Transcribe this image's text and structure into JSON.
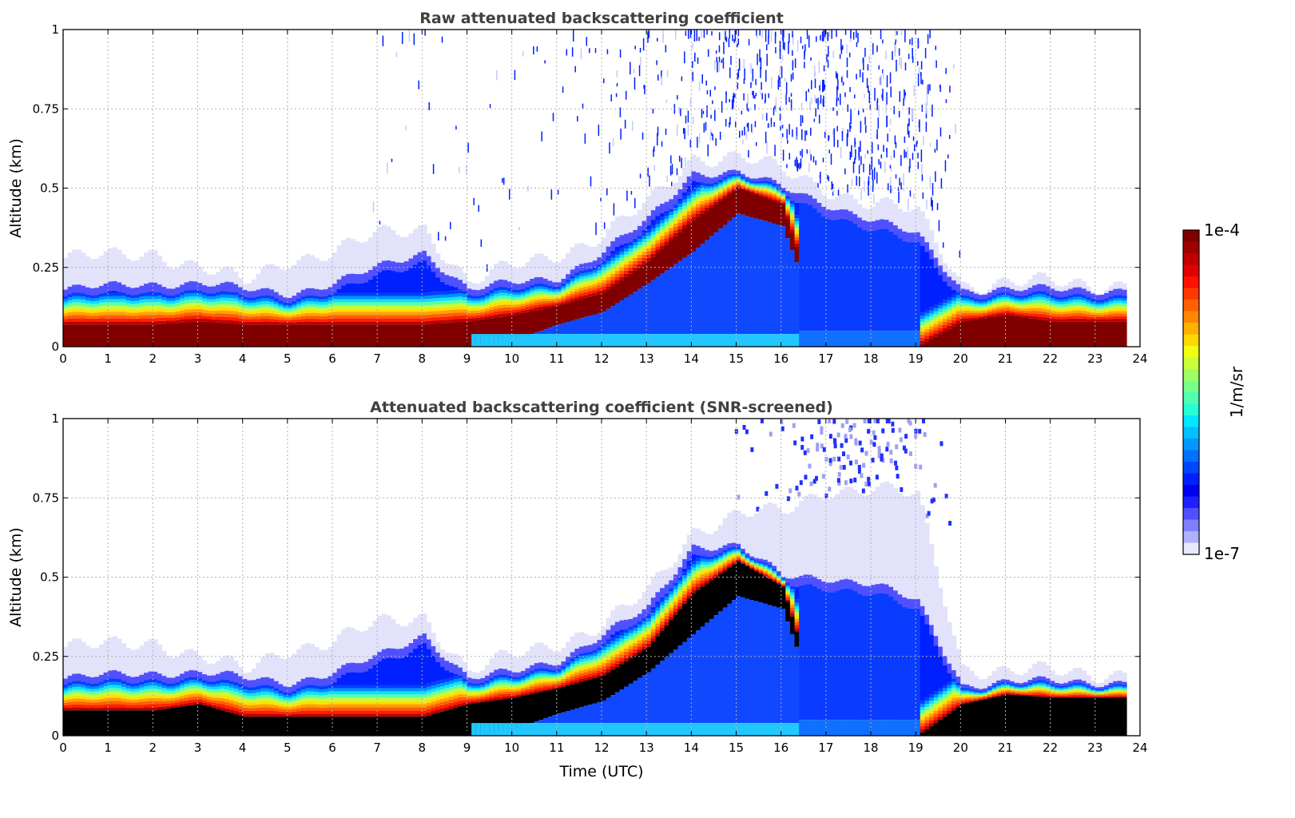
{
  "chart_data": [
    {
      "type": "heatmap",
      "title": "Raw attenuated backscattering coefficient",
      "xlabel": "",
      "ylabel": "Altitude (km)",
      "xlim": [
        0,
        24
      ],
      "ylim": [
        0,
        1
      ],
      "xticks": [
        "0",
        "1",
        "2",
        "3",
        "4",
        "5",
        "6",
        "7",
        "8",
        "9",
        "10",
        "11",
        "12",
        "13",
        "14",
        "15",
        "16",
        "17",
        "18",
        "19",
        "20",
        "21",
        "22",
        "23",
        "24"
      ],
      "yticks": [
        "0",
        "0.25",
        "0.5",
        "0.75",
        "1"
      ],
      "grid": true,
      "core_color": "#800000",
      "hours": [
        0,
        1,
        2,
        3,
        4,
        5,
        6,
        7,
        8,
        9,
        10,
        11,
        12,
        13,
        14,
        15,
        16,
        17,
        18,
        19,
        20,
        21,
        22,
        23,
        23.7
      ],
      "strong_layer_top_km": [
        0.07,
        0.07,
        0.07,
        0.08,
        0.07,
        0.07,
        0.07,
        0.07,
        0.07,
        0.08,
        0.1,
        0.13,
        0.17,
        0.27,
        0.4,
        0.5,
        0.45,
        0,
        0,
        0,
        0.08,
        0.1,
        0.08,
        0.08,
        0.08
      ],
      "strong_layer_bottom_km": [
        0,
        0,
        0,
        0,
        0,
        0,
        0,
        0,
        0,
        0,
        0.02,
        0.07,
        0.11,
        0.2,
        0.3,
        0.42,
        0.38,
        0,
        0,
        0,
        0,
        0,
        0,
        0,
        0
      ],
      "aerosol_layer_top_km": [
        0.18,
        0.19,
        0.2,
        0.2,
        0.18,
        0.17,
        0.2,
        0.25,
        0.3,
        0.18,
        0.2,
        0.22,
        0.3,
        0.4,
        0.55,
        0.55,
        0.5,
        0.45,
        0.4,
        0.35,
        0.18,
        0.18,
        0.18,
        0.18,
        0.18
      ],
      "haze_top_km": [
        0.28,
        0.28,
        0.3,
        0.25,
        0.2,
        0.28,
        0.3,
        0.35,
        0.38,
        0.2,
        0.25,
        0.3,
        0.35,
        0.45,
        0.6,
        0.6,
        0.55,
        0.5,
        0.45,
        0.42,
        0.2,
        0.2,
        0.2,
        0.2,
        0.2
      ],
      "noise_density": [
        0,
        0,
        0,
        0,
        0,
        0,
        0,
        0.05,
        0.05,
        0.05,
        0.05,
        0.1,
        0.2,
        0.35,
        0.5,
        0.65,
        0.8,
        0.9,
        0.9,
        0.9,
        0,
        0,
        0,
        0,
        0
      ],
      "upper_haze_top_km": [
        0,
        0,
        0,
        0,
        0,
        0,
        0,
        0,
        0,
        0,
        0,
        0,
        0,
        0,
        0,
        0,
        0,
        0,
        0,
        0,
        0,
        0,
        0,
        0,
        0
      ]
    },
    {
      "type": "heatmap",
      "title": "Attenuated backscattering coefficient (SNR-screened)",
      "xlabel": "Time (UTC)",
      "ylabel": "Altitude (km)",
      "xlim": [
        0,
        24
      ],
      "ylim": [
        0,
        1
      ],
      "xticks": [
        "0",
        "1",
        "2",
        "3",
        "4",
        "5",
        "6",
        "7",
        "8",
        "9",
        "10",
        "11",
        "12",
        "13",
        "14",
        "15",
        "16",
        "17",
        "18",
        "19",
        "20",
        "21",
        "22",
        "23",
        "24"
      ],
      "yticks": [
        "0",
        "0.25",
        "0.5",
        "0.75",
        "1"
      ],
      "grid": true,
      "core_color": "#000000",
      "hours": [
        0,
        1,
        2,
        3,
        4,
        5,
        6,
        7,
        8,
        9,
        10,
        11,
        12,
        13,
        14,
        15,
        16,
        17,
        18,
        19,
        20,
        21,
        22,
        23,
        23.7
      ],
      "strong_layer_top_km": [
        0.08,
        0.08,
        0.08,
        0.1,
        0.06,
        0.06,
        0.06,
        0.06,
        0.06,
        0.1,
        0.12,
        0.15,
        0.19,
        0.28,
        0.45,
        0.55,
        0.47,
        0,
        0,
        0,
        0.1,
        0.13,
        0.12,
        0.12,
        0.12
      ],
      "strong_layer_bottom_km": [
        0,
        0,
        0,
        0,
        0,
        0,
        0,
        0,
        0,
        0,
        0.02,
        0.07,
        0.11,
        0.2,
        0.32,
        0.44,
        0.4,
        0,
        0,
        0,
        0,
        0,
        0,
        0,
        0
      ],
      "aerosol_layer_top_km": [
        0.18,
        0.19,
        0.2,
        0.2,
        0.18,
        0.17,
        0.2,
        0.25,
        0.32,
        0.18,
        0.2,
        0.24,
        0.32,
        0.4,
        0.6,
        0.6,
        0.5,
        0.5,
        0.48,
        0.42,
        0.16,
        0.17,
        0.17,
        0.17,
        0.17
      ],
      "haze_top_km": [
        0.28,
        0.28,
        0.3,
        0.25,
        0.2,
        0.28,
        0.3,
        0.35,
        0.38,
        0.2,
        0.25,
        0.3,
        0.35,
        0.45,
        0.65,
        0.7,
        0.7,
        0.78,
        0.78,
        0.75,
        0.22,
        0.2,
        0.2,
        0.2,
        0.2
      ],
      "noise_density": [
        0,
        0,
        0,
        0,
        0,
        0,
        0,
        0,
        0,
        0,
        0,
        0,
        0,
        0,
        0,
        0.05,
        0.1,
        0.4,
        0.4,
        0.2,
        0,
        0,
        0,
        0,
        0
      ],
      "upper_haze_top_km": [
        0,
        0,
        0,
        0,
        0,
        0,
        0,
        0,
        0,
        0,
        0,
        0,
        0,
        0,
        0,
        0,
        0,
        0,
        0,
        0,
        0,
        0,
        0,
        0,
        0
      ]
    }
  ],
  "colorbar": {
    "label": "1/m/sr",
    "max_label": "1e-4",
    "min_label": "1e-7",
    "colors": [
      "#800000",
      "#a00000",
      "#c00000",
      "#e00000",
      "#ff1000",
      "#ff3800",
      "#ff6000",
      "#ff8800",
      "#ffb000",
      "#ffd800",
      "#f0ff10",
      "#c8ff38",
      "#a0ff60",
      "#78ff88",
      "#50ffb0",
      "#28ffd8",
      "#00e8ff",
      "#00c0ff",
      "#0098ff",
      "#0070ff",
      "#0048ff",
      "#0020ff",
      "#0000f0",
      "#2020ff",
      "#5050ff",
      "#8080ff",
      "#b0b0ff",
      "#e8e8fc"
    ]
  }
}
